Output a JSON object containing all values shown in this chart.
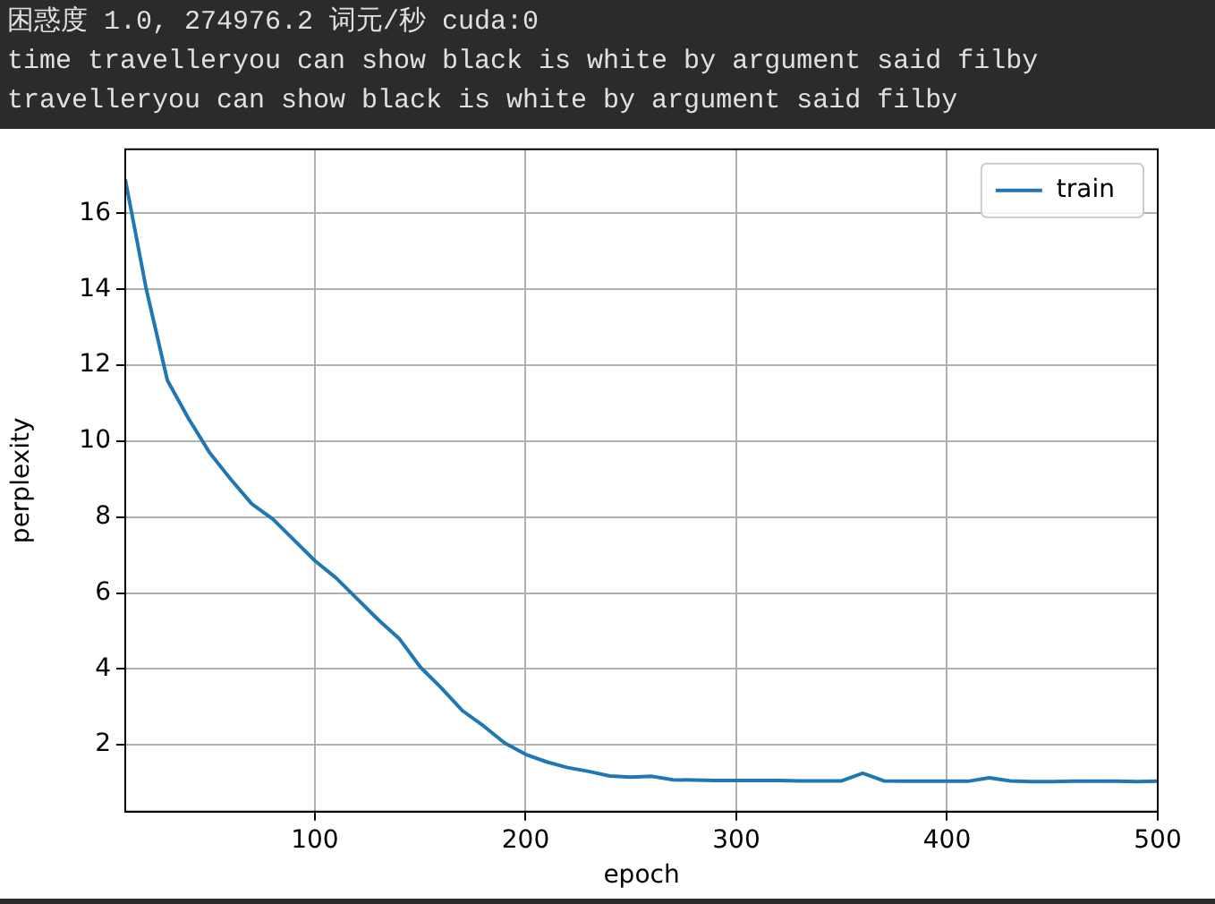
{
  "chart_data": {
    "type": "line",
    "annotations": [
      "困惑度 1.0, 274976.2 词元/秒 cuda:0",
      "time travelleryou can show black is white by argument said filby",
      "travelleryou can show black is white by argument said filby"
    ],
    "xlabel": "epoch",
    "ylabel": "perplexity",
    "x": [
      10,
      20,
      30,
      40,
      50,
      60,
      70,
      80,
      90,
      100,
      110,
      120,
      130,
      140,
      150,
      160,
      170,
      180,
      190,
      200,
      210,
      220,
      230,
      240,
      250,
      260,
      270,
      280,
      290,
      300,
      310,
      320,
      330,
      340,
      350,
      360,
      370,
      380,
      390,
      400,
      410,
      420,
      430,
      440,
      450,
      460,
      470,
      480,
      490,
      500
    ],
    "series": [
      {
        "name": "train",
        "color": "#1f77b4",
        "values": [
          16.9,
          14.0,
          11.6,
          10.6,
          9.7,
          9.0,
          8.35,
          7.95,
          7.4,
          6.85,
          6.4,
          5.85,
          5.3,
          4.8,
          4.05,
          3.5,
          2.9,
          2.5,
          2.05,
          1.75,
          1.55,
          1.4,
          1.3,
          1.18,
          1.15,
          1.17,
          1.08,
          1.07,
          1.06,
          1.06,
          1.06,
          1.06,
          1.05,
          1.05,
          1.05,
          1.25,
          1.05,
          1.04,
          1.04,
          1.04,
          1.04,
          1.13,
          1.05,
          1.03,
          1.03,
          1.04,
          1.04,
          1.04,
          1.03,
          1.04
        ]
      }
    ],
    "xlim": [
      10,
      500
    ],
    "xticks": [
      100,
      200,
      300,
      400,
      500
    ],
    "ylim": [
      0.24,
      17.69
    ],
    "yticks": [
      2,
      4,
      6,
      8,
      10,
      12,
      14,
      16
    ],
    "grid": true,
    "legend": "top right",
    "marker": "none",
    "line_style": "solid"
  }
}
